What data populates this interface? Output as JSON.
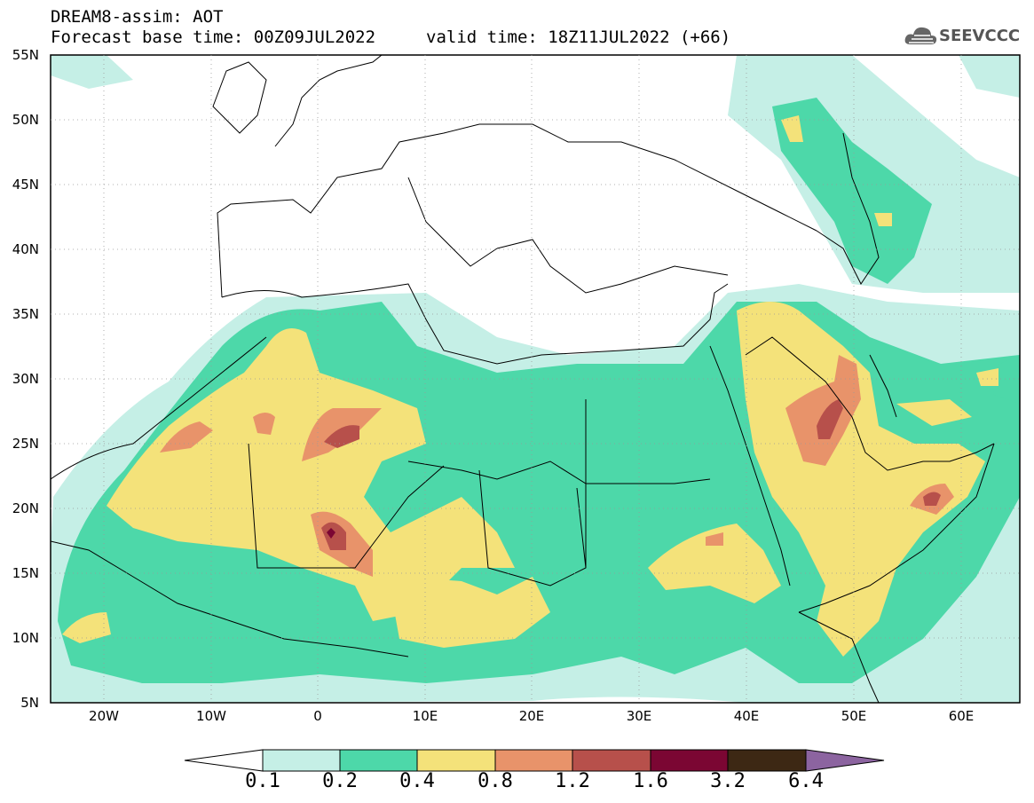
{
  "title": {
    "line1": "DREAM8-assim: AOT",
    "line2": "Forecast base time: 00Z09JUL2022",
    "valid": "valid time: 18Z11JUL2022 (+66)"
  },
  "logo": {
    "text": "SEEVCCC",
    "icon": "cloud-icon"
  },
  "map": {
    "lat_range": [
      5,
      55
    ],
    "lon_range": [
      -25,
      65
    ],
    "lat_ticks": [
      "55N",
      "50N",
      "45N",
      "40N",
      "35N",
      "30N",
      "25N",
      "20N",
      "15N",
      "10N",
      "5N"
    ],
    "lon_ticks": [
      "20W",
      "10W",
      "0",
      "10E",
      "20E",
      "30E",
      "40E",
      "50E",
      "60E"
    ],
    "grid": "dotted"
  },
  "colorbar": {
    "labels": [
      "0.1",
      "0.2",
      "0.4",
      "0.8",
      "1.2",
      "1.6",
      "3.2",
      "6.4"
    ],
    "colors": [
      "#ffffff",
      "#c5efe6",
      "#4dd8a9",
      "#f4e27a",
      "#e8936a",
      "#b7504b",
      "#7b0633",
      "#3d2814",
      "#8c64a0"
    ]
  }
}
